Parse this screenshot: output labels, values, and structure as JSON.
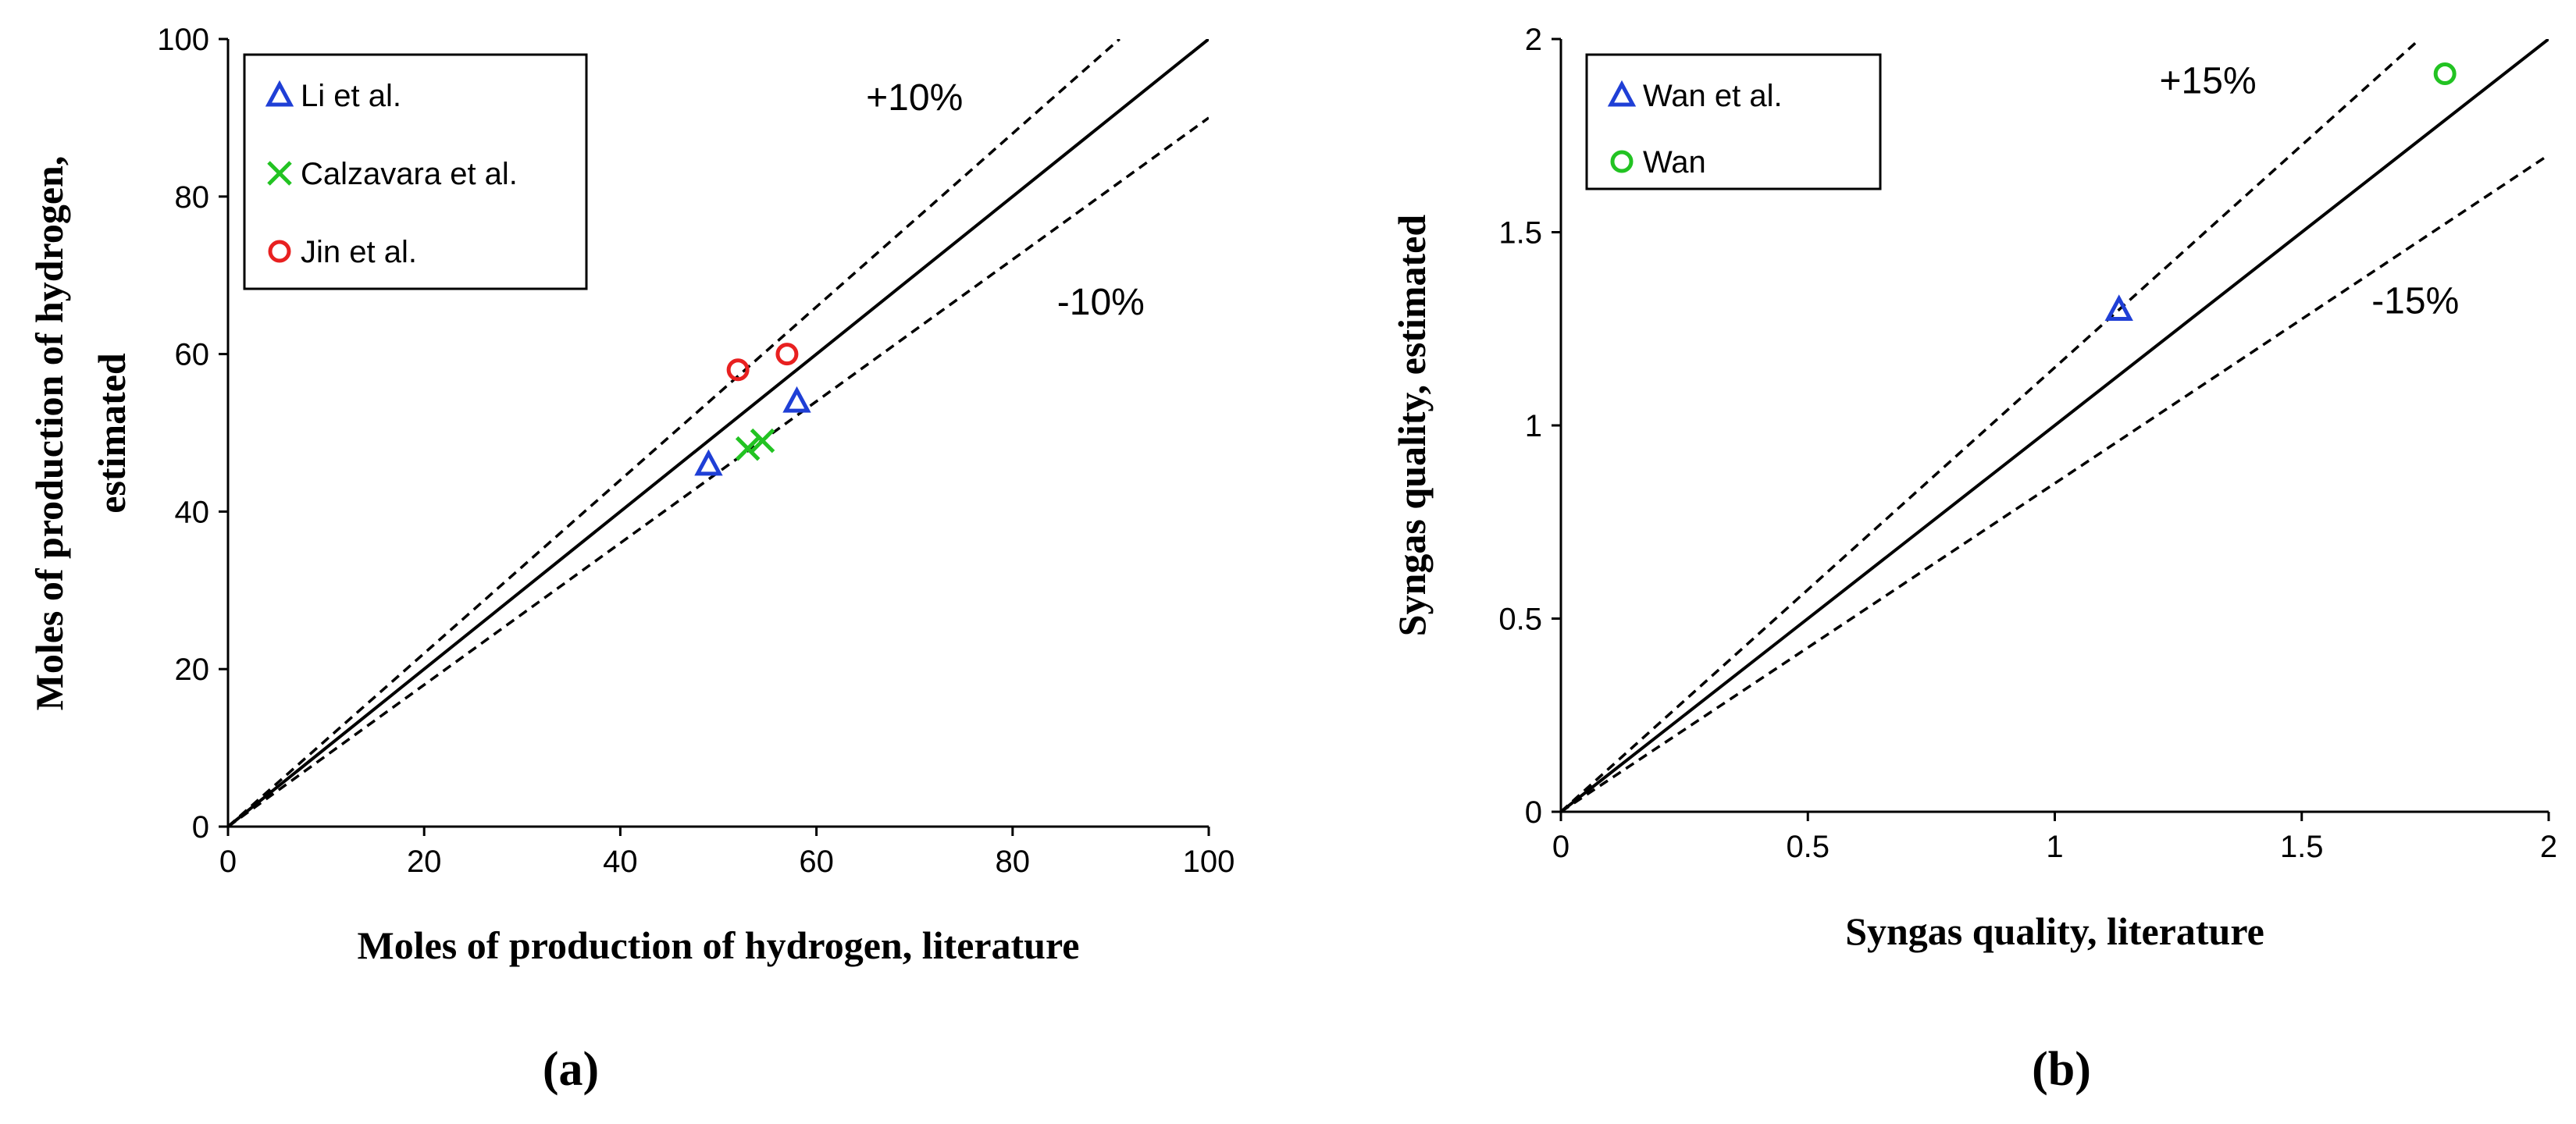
{
  "chart_data": [
    {
      "type": "scatter",
      "panel_label": "(a)",
      "xlabel": "Moles of production  of hydrogen,  literature",
      "ylabel_lines": [
        "Moles of production  of hydrogen,",
        "estimated"
      ],
      "xlim": [
        0,
        100
      ],
      "ylim": [
        0,
        100
      ],
      "xticks": [
        0,
        20,
        40,
        60,
        80,
        100
      ],
      "yticks": [
        0,
        20,
        40,
        60,
        80,
        100
      ],
      "reference_lines": [
        {
          "name": "parity",
          "slope": 1.0,
          "style": "solid"
        },
        {
          "name": "plus",
          "slope": 1.1,
          "style": "dashed",
          "label": "+10%",
          "label_at": [
            70,
            91
          ]
        },
        {
          "name": "minus",
          "slope": 0.9,
          "style": "dashed",
          "label": "-10%",
          "label_at": [
            89,
            65
          ]
        }
      ],
      "legend_position": "top-left",
      "series": [
        {
          "name": "Li et al.",
          "marker": "triangle",
          "color": "#1f3fd6",
          "points": [
            [
              49,
              46
            ],
            [
              58,
              54
            ]
          ]
        },
        {
          "name": "Calzavara et al.",
          "marker": "x",
          "color": "#22c322",
          "points": [
            [
              53,
              48
            ],
            [
              54.5,
              49
            ]
          ]
        },
        {
          "name": "Jin et al.",
          "marker": "circle",
          "color": "#e82020",
          "points": [
            [
              52,
              58
            ],
            [
              57,
              60
            ]
          ]
        }
      ]
    },
    {
      "type": "scatter",
      "panel_label": "(b)",
      "xlabel": "Syngas quality, literature",
      "ylabel_lines": [
        "Syngas quality, estimated"
      ],
      "xlim": [
        0,
        2
      ],
      "ylim": [
        0,
        2
      ],
      "xticks": [
        "0",
        "0.5",
        "1",
        "1.5",
        "2"
      ],
      "yticks": [
        "0",
        "0.5",
        "1",
        "1.5",
        "2"
      ],
      "reference_lines": [
        {
          "name": "parity",
          "slope": 1.0,
          "style": "solid"
        },
        {
          "name": "plus",
          "slope": 1.15,
          "style": "dashed",
          "label": "+15%",
          "label_at": [
            1.31,
            1.86
          ]
        },
        {
          "name": "minus",
          "slope": 0.85,
          "style": "dashed",
          "label": "-15%",
          "label_at": [
            1.73,
            1.29
          ]
        }
      ],
      "legend_position": "top-left",
      "series": [
        {
          "name": "Wan et al.",
          "marker": "triangle",
          "color": "#1f3fd6",
          "points": [
            [
              1.13,
              1.3
            ]
          ]
        },
        {
          "name": "Wan",
          "marker": "circle",
          "color": "#22c322",
          "points": [
            [
              1.79,
              1.91
            ]
          ]
        }
      ]
    }
  ]
}
